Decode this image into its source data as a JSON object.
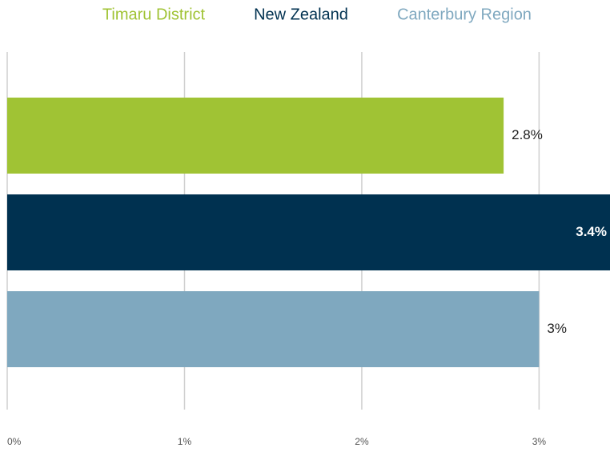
{
  "chart_data": {
    "type": "bar",
    "orientation": "horizontal",
    "series": [
      {
        "name": "Timaru District",
        "color": "#a0c334",
        "values": [
          2.8
        ],
        "value_labels": [
          "2.8%"
        ]
      },
      {
        "name": "New Zealand",
        "color": "#003150",
        "values": [
          3.4
        ],
        "value_labels": [
          "3.4%"
        ]
      },
      {
        "name": "Canterbury Region",
        "color": "#7fa8bf",
        "values": [
          3
        ],
        "value_labels": [
          "3%"
        ]
      }
    ],
    "xlim": [
      0,
      3.4
    ],
    "xticks": [
      {
        "value": 0,
        "label": "0%"
      },
      {
        "value": 1,
        "label": "1%"
      },
      {
        "value": 2,
        "label": "2%"
      },
      {
        "value": 3,
        "label": "3%"
      }
    ],
    "grid": true,
    "legend": "top"
  }
}
